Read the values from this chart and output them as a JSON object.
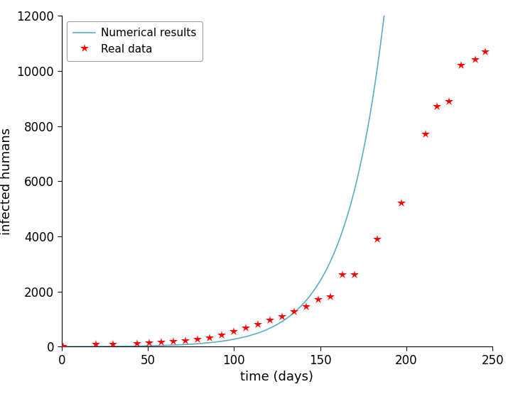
{
  "real_data_x": [
    1,
    20,
    30,
    44,
    51,
    58,
    65,
    72,
    79,
    86,
    93,
    100,
    107,
    114,
    121,
    128,
    135,
    142,
    149,
    156,
    163,
    170,
    183,
    197,
    211,
    218,
    225,
    232,
    240,
    246
  ],
  "real_data_y": [
    1,
    80,
    100,
    120,
    150,
    170,
    200,
    210,
    260,
    330,
    430,
    540,
    670,
    810,
    960,
    1100,
    1280,
    1440,
    1700,
    1800,
    2600,
    2600,
    3900,
    5200,
    7700,
    8700,
    8900,
    10200,
    10400,
    10700
  ],
  "curve_start": 0,
  "curve_end": 248,
  "curve_a": 3.5,
  "curve_b": 0.0435,
  "xlim": [
    0,
    250
  ],
  "ylim": [
    0,
    12000
  ],
  "xticks": [
    0,
    50,
    100,
    150,
    200,
    250
  ],
  "yticks": [
    0,
    2000,
    4000,
    6000,
    8000,
    10000,
    12000
  ],
  "xlabel": "time (days)",
  "ylabel": "infected humans",
  "line_color": "#5aafc7",
  "marker_color": "#ff0000",
  "legend_numerical": "Numerical results",
  "legend_data": "Real data",
  "background_color": "#ffffff",
  "line_width": 1.2,
  "marker_size": 9,
  "tick_labelsize": 12,
  "axis_labelsize": 13
}
